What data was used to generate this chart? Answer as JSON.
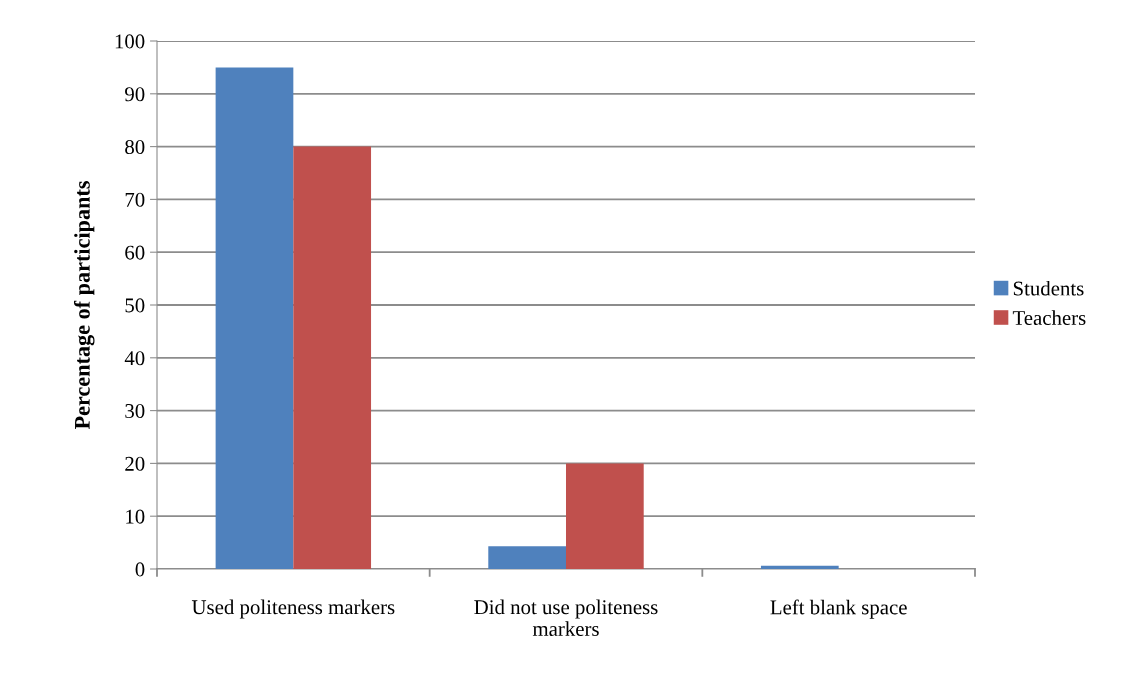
{
  "chart_data": {
    "type": "bar",
    "ylabel": "Percentage of participants",
    "categories": [
      "Used politeness markers",
      "Did not use politeness markers",
      "Left blank space"
    ],
    "series": [
      {
        "name": "Students",
        "color": "#4f81bd",
        "values": [
          95,
          4.3,
          0.6
        ]
      },
      {
        "name": "Teachers",
        "color": "#c0504d",
        "values": [
          80,
          20,
          0
        ]
      }
    ],
    "ylim": [
      0,
      100
    ],
    "yticks": [
      0,
      10,
      20,
      30,
      40,
      50,
      60,
      70,
      80,
      90,
      100
    ],
    "grid": "y",
    "legend": "right"
  }
}
